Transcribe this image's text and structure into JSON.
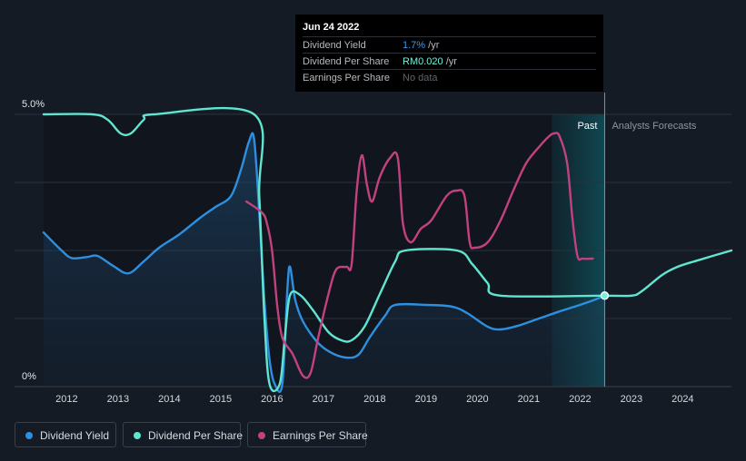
{
  "tooltip": {
    "date": "Jun 24 2022",
    "rows": [
      {
        "label": "Dividend Yield",
        "value": "1.7%",
        "unit": " /yr",
        "color": "#3d9ae8"
      },
      {
        "label": "Dividend Per Share",
        "value": "RM0.020",
        "unit": " /yr",
        "color": "#74f2dc"
      },
      {
        "label": "Earnings Per Share",
        "value": "No data",
        "unit": "",
        "color": "#5f656c"
      }
    ]
  },
  "segments": {
    "past": "Past",
    "forecast": "Analysts Forecasts"
  },
  "legend": [
    {
      "label": "Dividend Yield",
      "color": "#2d8fe0"
    },
    {
      "label": "Dividend Per Share",
      "color": "#5fe5d0"
    },
    {
      "label": "Earnings Per Share",
      "color": "#c2417e"
    }
  ],
  "chart_data": {
    "type": "line",
    "y_ticks": [
      "5.0%",
      "0%"
    ],
    "ylim": [
      0,
      5.0
    ],
    "x_ticks": [
      "2012",
      "2013",
      "2014",
      "2015",
      "2016",
      "2017",
      "2018",
      "2019",
      "2020",
      "2021",
      "2022",
      "2023",
      "2024"
    ],
    "xlim": [
      2011.55,
      2024.95
    ],
    "past_end": 2022.48,
    "highlight_start": 2021.45,
    "series": [
      {
        "name": "Dividend Yield",
        "color": "#2d8fe0",
        "area": true,
        "points": [
          [
            2011.55,
            2.83
          ],
          [
            2011.9,
            2.5
          ],
          [
            2012.1,
            2.36
          ],
          [
            2012.4,
            2.38
          ],
          [
            2012.6,
            2.4
          ],
          [
            2012.9,
            2.22
          ],
          [
            2013.2,
            2.08
          ],
          [
            2013.5,
            2.3
          ],
          [
            2013.8,
            2.55
          ],
          [
            2014.2,
            2.8
          ],
          [
            2014.6,
            3.1
          ],
          [
            2014.9,
            3.3
          ],
          [
            2015.2,
            3.5
          ],
          [
            2015.4,
            4.0
          ],
          [
            2015.55,
            4.5
          ],
          [
            2015.65,
            4.55
          ],
          [
            2015.75,
            3.2
          ],
          [
            2015.85,
            1.6
          ],
          [
            2015.95,
            0.5
          ],
          [
            2016.05,
            0.05
          ],
          [
            2016.2,
            0.05
          ],
          [
            2016.3,
            1.8
          ],
          [
            2016.35,
            2.2
          ],
          [
            2016.45,
            1.6
          ],
          [
            2016.6,
            1.2
          ],
          [
            2016.9,
            0.8
          ],
          [
            2017.2,
            0.6
          ],
          [
            2017.5,
            0.53
          ],
          [
            2017.7,
            0.6
          ],
          [
            2017.9,
            0.9
          ],
          [
            2018.2,
            1.3
          ],
          [
            2018.4,
            1.5
          ],
          [
            2019.0,
            1.5
          ],
          [
            2019.5,
            1.47
          ],
          [
            2019.8,
            1.35
          ],
          [
            2020.2,
            1.1
          ],
          [
            2020.45,
            1.05
          ],
          [
            2020.8,
            1.12
          ],
          [
            2021.2,
            1.25
          ],
          [
            2021.6,
            1.38
          ],
          [
            2022.0,
            1.5
          ],
          [
            2022.3,
            1.6
          ],
          [
            2022.48,
            1.67
          ]
        ]
      },
      {
        "name": "Dividend Per Share",
        "color": "#5fe5d0",
        "area": false,
        "points": [
          [
            2011.55,
            5.0
          ],
          [
            2012.5,
            5.0
          ],
          [
            2012.8,
            4.9
          ],
          [
            2013.05,
            4.65
          ],
          [
            2013.25,
            4.65
          ],
          [
            2013.5,
            4.9
          ],
          [
            2013.7,
            5.0
          ],
          [
            2015.65,
            5.0
          ],
          [
            2015.75,
            3.5
          ],
          [
            2015.85,
            1.3
          ],
          [
            2015.95,
            0.05
          ],
          [
            2016.15,
            0.05
          ],
          [
            2016.25,
            0.9
          ],
          [
            2016.35,
            1.68
          ],
          [
            2016.55,
            1.68
          ],
          [
            2016.8,
            1.4
          ],
          [
            2017.1,
            1.0
          ],
          [
            2017.35,
            0.85
          ],
          [
            2017.55,
            0.85
          ],
          [
            2017.8,
            1.1
          ],
          [
            2018.1,
            1.7
          ],
          [
            2018.4,
            2.3
          ],
          [
            2018.6,
            2.5
          ],
          [
            2019.6,
            2.5
          ],
          [
            2019.9,
            2.25
          ],
          [
            2020.2,
            1.9
          ],
          [
            2020.45,
            1.67
          ],
          [
            2022.48,
            1.67
          ],
          [
            2023.0,
            1.67
          ],
          [
            2023.2,
            1.75
          ],
          [
            2023.6,
            2.05
          ],
          [
            2023.9,
            2.2
          ],
          [
            2024.3,
            2.32
          ],
          [
            2024.95,
            2.5
          ]
        ]
      },
      {
        "name": "Earnings Per Share",
        "color": "#c2417e",
        "area": false,
        "points": [
          [
            2015.5,
            3.4
          ],
          [
            2015.8,
            3.2
          ],
          [
            2015.9,
            3.0
          ],
          [
            2016.0,
            2.5
          ],
          [
            2016.1,
            1.5
          ],
          [
            2016.2,
            0.9
          ],
          [
            2016.4,
            0.6
          ],
          [
            2016.6,
            0.2
          ],
          [
            2016.75,
            0.25
          ],
          [
            2016.9,
            0.9
          ],
          [
            2017.1,
            1.7
          ],
          [
            2017.25,
            2.15
          ],
          [
            2017.45,
            2.2
          ],
          [
            2017.55,
            2.25
          ],
          [
            2017.65,
            3.6
          ],
          [
            2017.75,
            4.25
          ],
          [
            2017.85,
            3.7
          ],
          [
            2017.95,
            3.4
          ],
          [
            2018.1,
            3.85
          ],
          [
            2018.3,
            4.2
          ],
          [
            2018.45,
            4.2
          ],
          [
            2018.55,
            3.0
          ],
          [
            2018.7,
            2.65
          ],
          [
            2018.9,
            2.9
          ],
          [
            2019.1,
            3.05
          ],
          [
            2019.4,
            3.5
          ],
          [
            2019.6,
            3.6
          ],
          [
            2019.75,
            3.5
          ],
          [
            2019.85,
            2.65
          ],
          [
            2019.95,
            2.55
          ],
          [
            2020.2,
            2.65
          ],
          [
            2020.45,
            3.05
          ],
          [
            2020.7,
            3.6
          ],
          [
            2020.95,
            4.1
          ],
          [
            2021.2,
            4.4
          ],
          [
            2021.4,
            4.6
          ],
          [
            2021.5,
            4.65
          ],
          [
            2021.6,
            4.6
          ],
          [
            2021.75,
            4.1
          ],
          [
            2021.85,
            3.1
          ],
          [
            2021.95,
            2.4
          ],
          [
            2022.05,
            2.35
          ],
          [
            2022.25,
            2.35
          ]
        ]
      }
    ]
  }
}
